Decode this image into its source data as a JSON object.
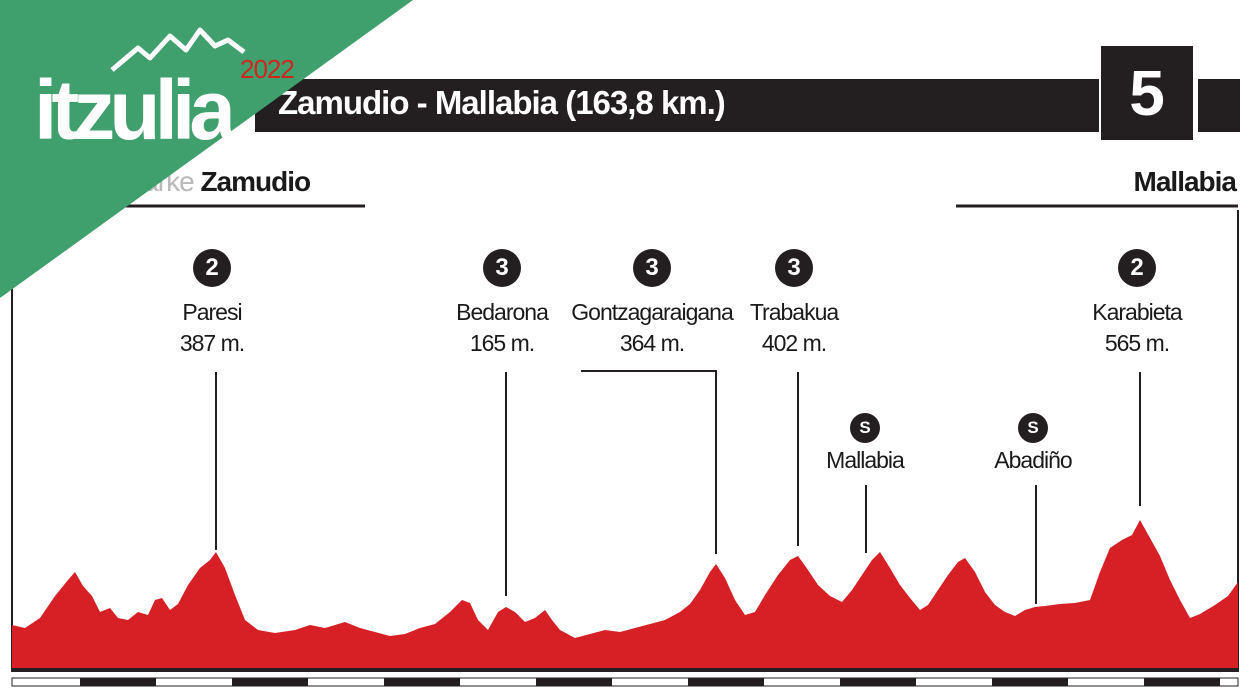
{
  "logo": {
    "brand": "itzulia",
    "year": "2022"
  },
  "stage": {
    "title": "Zamudio - Mallabia (163,8 km.)",
    "number": "5"
  },
  "start": {
    "prefix": "Ingeteam Parke ",
    "name": "Zamudio"
  },
  "finish": {
    "name": "Mallabia"
  },
  "climbs": [
    {
      "category": "2",
      "name": "Paresi",
      "altitude": "387 m."
    },
    {
      "category": "3",
      "name": "Bedarona",
      "altitude": "165 m."
    },
    {
      "category": "3",
      "name": "Gontzagaraigana",
      "altitude": "364 m."
    },
    {
      "category": "3",
      "name": "Trabakua",
      "altitude": "402 m."
    },
    {
      "category": "2",
      "name": "Karabieta",
      "altitude": "565 m."
    }
  ],
  "sprints": [
    {
      "icon": "S",
      "name": "Mallabia"
    },
    {
      "icon": "S",
      "name": "Abadiño"
    }
  ],
  "colors": {
    "profile": "#d71f26",
    "logo_band": "#3f9f6d",
    "dark": "#231f20",
    "year": "#d1261f"
  }
}
